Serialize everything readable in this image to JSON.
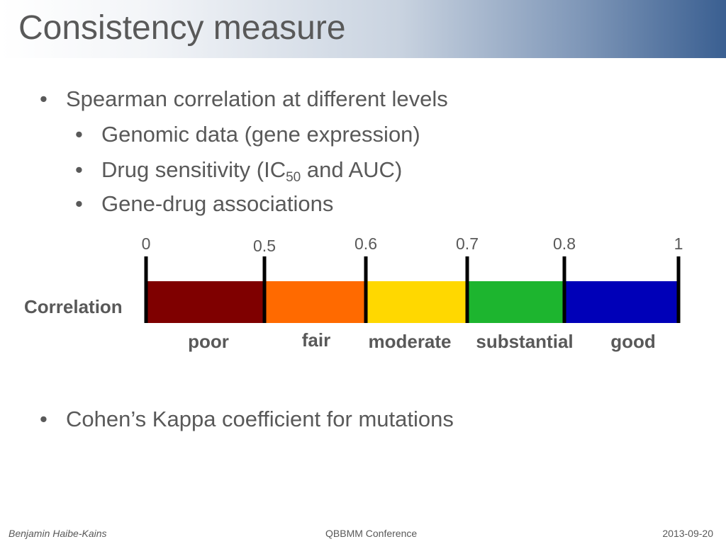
{
  "slide": {
    "title": "Consistency measure",
    "bullets": [
      {
        "text": "Spearman correlation at different levels",
        "subs": [
          {
            "text": "Genomic data (gene expression)"
          },
          {
            "text": "Drug sensitivity (IC",
            "sub": "50",
            "after": " and AUC)"
          },
          {
            "text": "Gene-drug associations"
          }
        ]
      },
      {
        "text": "Cohen’s Kappa coefficient for mutations"
      }
    ],
    "bullet_char": "•"
  },
  "scale": {
    "row_label": "Correlation",
    "ticks": [
      "0",
      "0.5",
      "0.6",
      "0.7",
      "0.8",
      "1"
    ],
    "categories": [
      "poor",
      "fair",
      "moderate",
      "substantial",
      "good"
    ],
    "colors": [
      "#7f0000",
      "#ff6a00",
      "#ffd800",
      "#1db52f",
      "#0000b8"
    ]
  },
  "footer": {
    "author": "Benjamin Haibe-Kains",
    "conference": "QBBMM Conference",
    "date": "2013-09-20"
  }
}
